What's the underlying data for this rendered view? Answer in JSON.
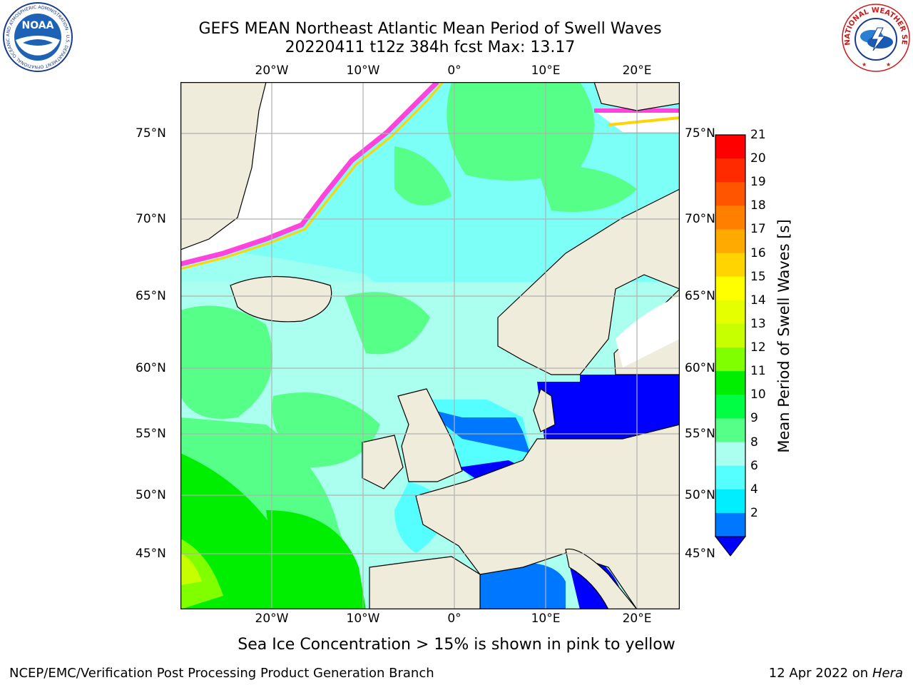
{
  "header": {
    "title_line1": "GEFS MEAN Northeast Atlantic Mean Period of Swell Waves",
    "title_line2": "20220411 t12z 384h fcst   Max: 13.17"
  },
  "logos": {
    "noaa": {
      "center_text": "NOAA",
      "ring_text": "NATIONAL OCEANIC AND ATMOSPHERIC ADMINISTRATION · U.S. DEPARTMENT OF COMMERCE"
    },
    "nws": {
      "ring_text": "NATIONAL WEATHER SERVICE"
    }
  },
  "map": {
    "lon_labels": [
      "20°W",
      "10°W",
      "0°",
      "10°E",
      "20°E"
    ],
    "lat_labels": [
      "75°N",
      "70°N",
      "65°N",
      "60°N",
      "55°N",
      "50°N",
      "45°N"
    ],
    "colors": {
      "land": "#efecdc",
      "ice_fill": "#ffffff",
      "grid": "#b0b0b0"
    }
  },
  "colorbar": {
    "label": "Mean Period of Swell Waves [s]",
    "ticks": [
      "21",
      "20",
      "19",
      "18",
      "17",
      "16",
      "15",
      "14",
      "13",
      "12",
      "11",
      "10",
      "9",
      "8",
      "6",
      "4",
      "2"
    ],
    "colors": [
      "#ff0000",
      "#ff2a00",
      "#ff5500",
      "#ff8000",
      "#ffaa00",
      "#ffd400",
      "#ffff00",
      "#e6ff00",
      "#c8ff00",
      "#7fff00",
      "#00ee00",
      "#00ff44",
      "#55ff88",
      "#aaffee",
      "#55ffff",
      "#00eeff",
      "#0077ff"
    ],
    "under_color": "#0000ff"
  },
  "notes": {
    "sea_ice": "Sea Ice Concentration > 15% is shown in pink to yellow"
  },
  "footer": {
    "left": "NCEP/EMC/Verification Post Processing Product Generation Branch",
    "right_date": "12 Apr 2022 on ",
    "right_host": "Hera"
  }
}
